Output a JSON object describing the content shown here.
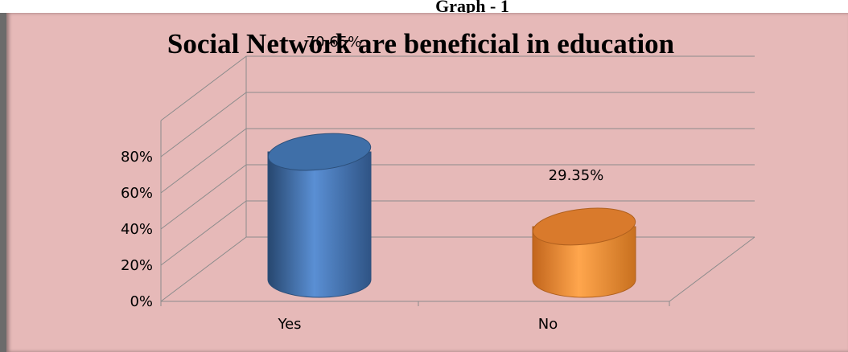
{
  "caption": "Graph - 1",
  "colors": {
    "background": "#e6b9b8",
    "yes_bar": "#4f81bd",
    "no_bar": "#f79646"
  },
  "chart_data": {
    "type": "bar",
    "style": "3d-cylinder",
    "title": "Social Network are beneficial in education",
    "categories": [
      "Yes",
      "No"
    ],
    "values": [
      70.65,
      29.35
    ],
    "data_labels": [
      "70.65%",
      "29.35%"
    ],
    "y_ticks": [
      "0%",
      "20%",
      "40%",
      "60%",
      "80%"
    ],
    "ylim": [
      0,
      80
    ],
    "grid": true,
    "legend": "none"
  }
}
